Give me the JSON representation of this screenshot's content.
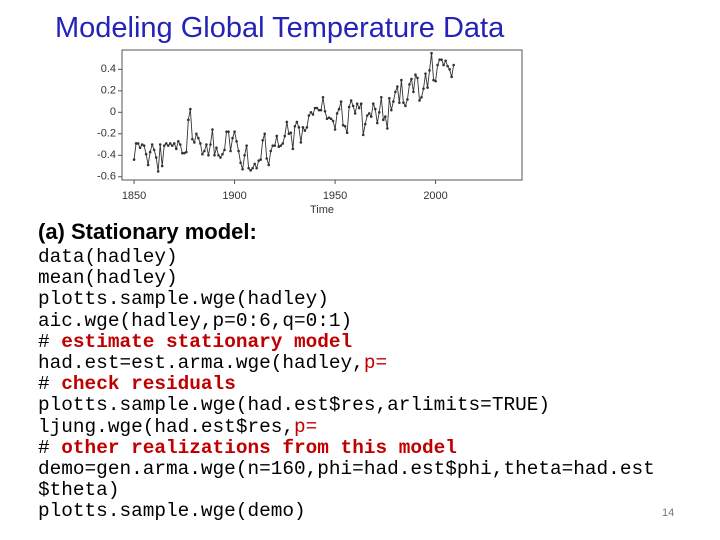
{
  "title": "Modeling Global Temperature Data",
  "chart_data": {
    "type": "line",
    "x_label": "Time",
    "color": "#333333",
    "markers": true,
    "x": [
      1850,
      1851,
      1852,
      1853,
      1854,
      1855,
      1856,
      1857,
      1858,
      1859,
      1860,
      1861,
      1862,
      1863,
      1864,
      1865,
      1866,
      1867,
      1868,
      1869,
      1870,
      1871,
      1872,
      1873,
      1874,
      1875,
      1876,
      1877,
      1878,
      1879,
      1880,
      1881,
      1882,
      1883,
      1884,
      1885,
      1886,
      1887,
      1888,
      1889,
      1890,
      1891,
      1892,
      1893,
      1894,
      1895,
      1896,
      1897,
      1898,
      1899,
      1900,
      1901,
      1902,
      1903,
      1904,
      1905,
      1906,
      1907,
      1908,
      1909,
      1910,
      1911,
      1912,
      1913,
      1914,
      1915,
      1916,
      1917,
      1918,
      1919,
      1920,
      1921,
      1922,
      1923,
      1924,
      1925,
      1926,
      1927,
      1928,
      1929,
      1930,
      1931,
      1932,
      1933,
      1934,
      1935,
      1936,
      1937,
      1938,
      1939,
      1940,
      1941,
      1942,
      1943,
      1944,
      1945,
      1946,
      1947,
      1948,
      1949,
      1950,
      1951,
      1952,
      1953,
      1954,
      1955,
      1956,
      1957,
      1958,
      1959,
      1960,
      1961,
      1962,
      1963,
      1964,
      1965,
      1966,
      1967,
      1968,
      1969,
      1970,
      1971,
      1972,
      1973,
      1974,
      1975,
      1976,
      1977,
      1978,
      1979,
      1980,
      1981,
      1982,
      1983,
      1984,
      1985,
      1986,
      1987,
      1988,
      1989,
      1990,
      1991,
      1992,
      1993,
      1994,
      1995,
      1996,
      1997,
      1998,
      1999,
      2000,
      2001,
      2002,
      2003,
      2004,
      2005,
      2006,
      2007,
      2008,
      2009
    ],
    "values": [
      -0.44,
      -0.29,
      -0.29,
      -0.33,
      -0.3,
      -0.31,
      -0.39,
      -0.49,
      -0.37,
      -0.3,
      -0.35,
      -0.42,
      -0.55,
      -0.3,
      -0.5,
      -0.31,
      -0.29,
      -0.31,
      -0.29,
      -0.31,
      -0.29,
      -0.34,
      -0.27,
      -0.3,
      -0.38,
      -0.38,
      -0.37,
      -0.07,
      0.03,
      -0.25,
      -0.28,
      -0.2,
      -0.24,
      -0.29,
      -0.39,
      -0.36,
      -0.3,
      -0.4,
      -0.3,
      -0.16,
      -0.4,
      -0.33,
      -0.4,
      -0.42,
      -0.39,
      -0.35,
      -0.18,
      -0.18,
      -0.36,
      -0.24,
      -0.18,
      -0.27,
      -0.36,
      -0.47,
      -0.53,
      -0.4,
      -0.31,
      -0.52,
      -0.54,
      -0.52,
      -0.48,
      -0.52,
      -0.45,
      -0.44,
      -0.26,
      -0.2,
      -0.43,
      -0.49,
      -0.36,
      -0.31,
      -0.31,
      -0.22,
      -0.32,
      -0.31,
      -0.29,
      -0.22,
      -0.09,
      -0.2,
      -0.19,
      -0.34,
      -0.13,
      -0.09,
      -0.14,
      -0.28,
      -0.14,
      -0.17,
      -0.14,
      -0.03,
      0.0,
      -0.02,
      0.04,
      0.04,
      0.02,
      0.02,
      0.14,
      0.01,
      -0.06,
      -0.05,
      -0.06,
      -0.08,
      -0.16,
      -0.01,
      0.03,
      0.1,
      -0.12,
      -0.13,
      -0.19,
      0.05,
      0.11,
      0.06,
      -0.01,
      0.08,
      0.04,
      0.08,
      -0.21,
      -0.11,
      -0.03,
      -0.01,
      -0.04,
      0.08,
      0.03,
      -0.1,
      0.0,
      0.14,
      -0.07,
      -0.04,
      -0.15,
      0.13,
      0.02,
      0.1,
      0.19,
      0.24,
      0.09,
      0.3,
      0.09,
      0.06,
      0.12,
      0.26,
      0.31,
      0.19,
      0.35,
      0.32,
      0.11,
      0.14,
      0.22,
      0.36,
      0.23,
      0.39,
      0.55,
      0.3,
      0.29,
      0.44,
      0.49,
      0.49,
      0.44,
      0.48,
      0.43,
      0.4,
      0.33,
      0.44
    ],
    "xlim": [
      1844,
      2043
    ],
    "ylim": [
      -0.63,
      0.58
    ],
    "xticks": [
      1850,
      1900,
      1950,
      2000
    ],
    "yticks": [
      -0.6,
      -0.4,
      -0.2,
      0,
      0.2,
      0.4
    ]
  },
  "subtitle": "(a) Stationary model:",
  "code_lines": [
    [
      {
        "text": "data(hadley)"
      }
    ],
    [
      {
        "text": "mean(hadley)"
      }
    ],
    [
      {
        "text": "plotts.sample.wge(hadley)"
      }
    ],
    [
      {
        "text": "aic.wge(hadley,p=0:6,q=0:1)"
      }
    ],
    [
      {
        "text": "# "
      },
      {
        "text": "estimate stationary model",
        "color": "#c00000",
        "bold": true
      }
    ],
    [
      {
        "text": "had.est=est.arma.wge(hadley,"
      },
      {
        "text": "p=",
        "color": "#c00000"
      }
    ],
    [
      {
        "text": "# "
      },
      {
        "text": "check residuals",
        "color": "#c00000",
        "bold": true
      }
    ],
    [
      {
        "text": "plotts.sample.wge(had.est$res,arlimits=TRUE)"
      }
    ],
    [
      {
        "text": "ljung.wge(had.est$res,"
      },
      {
        "text": "p=",
        "color": "#c00000"
      }
    ],
    [
      {
        "text": "# "
      },
      {
        "text": "other realizations from this model",
        "color": "#c00000",
        "bold": true
      }
    ],
    [
      {
        "text": "demo=gen.arma.wge(n=160,phi=had.est$phi,theta=had.est"
      }
    ],
    [
      {
        "text": "$theta)"
      }
    ],
    [
      {
        "text": "plotts.sample.wge(demo)"
      }
    ]
  ],
  "page_number": "14"
}
